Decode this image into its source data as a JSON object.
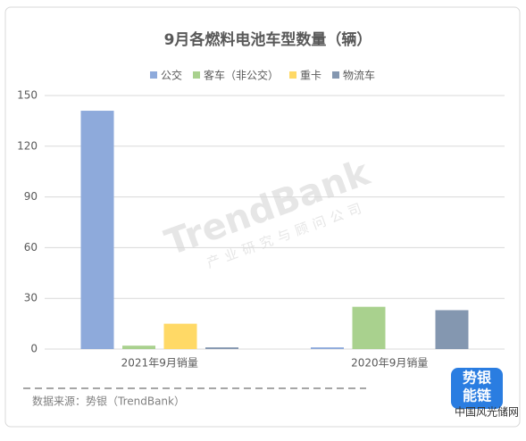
{
  "chart_data": {
    "type": "bar",
    "title": "9月各燃料电池车型数量（辆）",
    "categories": [
      "2021年9月销量",
      "2020年9月销量"
    ],
    "series": [
      {
        "name": "公交",
        "color": "#8eaadb",
        "values": [
          141,
          1
        ]
      },
      {
        "name": "客车（非公交）",
        "color": "#a9d18e",
        "values": [
          2,
          25
        ]
      },
      {
        "name": "重卡",
        "color": "#ffd966",
        "values": [
          15,
          0
        ]
      },
      {
        "name": "物流车",
        "color": "#8497b0",
        "values": [
          1,
          23
        ]
      }
    ],
    "ylim": [
      0,
      150
    ],
    "yticks": [
      0,
      30,
      60,
      90,
      120,
      150
    ],
    "grid": true,
    "legend": "top",
    "source": "数据来源：势银（TrendBank）",
    "watermark": "TrendBank",
    "watermark_sub": "产业研究与顾问公司",
    "logo": [
      "势银",
      "能链"
    ],
    "site": "中国风光储网"
  }
}
